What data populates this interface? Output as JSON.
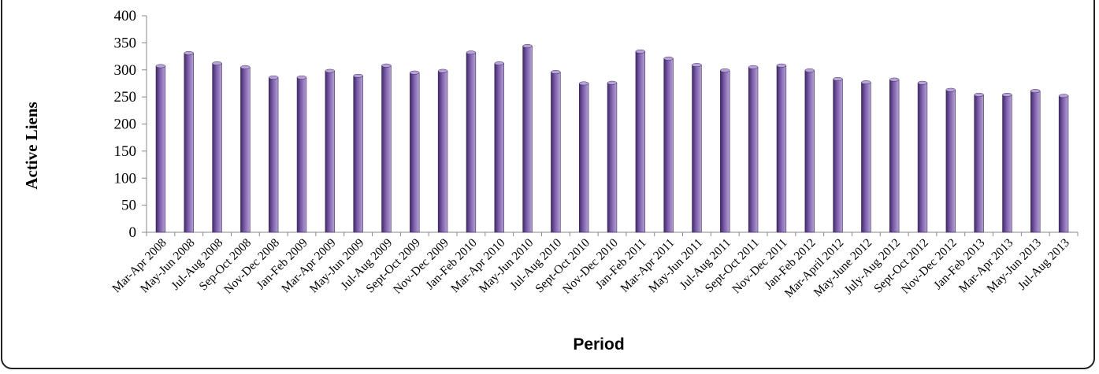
{
  "chart_data": {
    "type": "bar",
    "title": "",
    "xlabel": "Period",
    "ylabel": "Active Liens",
    "ylim": [
      0,
      400
    ],
    "yticks": [
      0,
      50,
      100,
      150,
      200,
      250,
      300,
      350,
      400
    ],
    "grid": false,
    "legend": "none",
    "bar_color": "#7a5ba8",
    "bar_highlight": "#b7a3d6",
    "bar_shadow": "#3f2a63",
    "categories": [
      "Mar-Apr 2008",
      "May-Jun 2008",
      "Jul-Aug 2008",
      "Sep-Oct 2008",
      "Nov-Dec 2008",
      "Jan-Feb 2009",
      "Mar-Apr 2009",
      "May-Jun 2009",
      "Jul-Aug 2009",
      "Sept-Oct 2009",
      "Nov-Dec 2009",
      "Jan-Feb 2010",
      "Mar-Apr 2010",
      "May-Jun 2010",
      "Jul-Aug 2010",
      "Sept-Oct 2010",
      "Nov-Dec 2010",
      "Jan-Feb 2011",
      "Mar-Apr 2011",
      "May-Jun 2011",
      "Jul-Aug 2011",
      "Sept-Oct 2011",
      "Nov-Dec 2011",
      "Jan-Feb 2012",
      "Mar-April 2012",
      "May-June 2012",
      "July-Aug 2012",
      "Sept-Oct 2012",
      "Nov-Dec 2012",
      "Jan-Feb 2013",
      "Mar-Apr 2013",
      "May-Jun 2013",
      "Jul-Aug 2013"
    ],
    "values": [
      307,
      331,
      312,
      305,
      286,
      286,
      298,
      289,
      308,
      295,
      298,
      332,
      312,
      344,
      296,
      275,
      276,
      334,
      321,
      309,
      299,
      305,
      308,
      299,
      283,
      277,
      282,
      276,
      263,
      254,
      254,
      261,
      252
    ]
  }
}
